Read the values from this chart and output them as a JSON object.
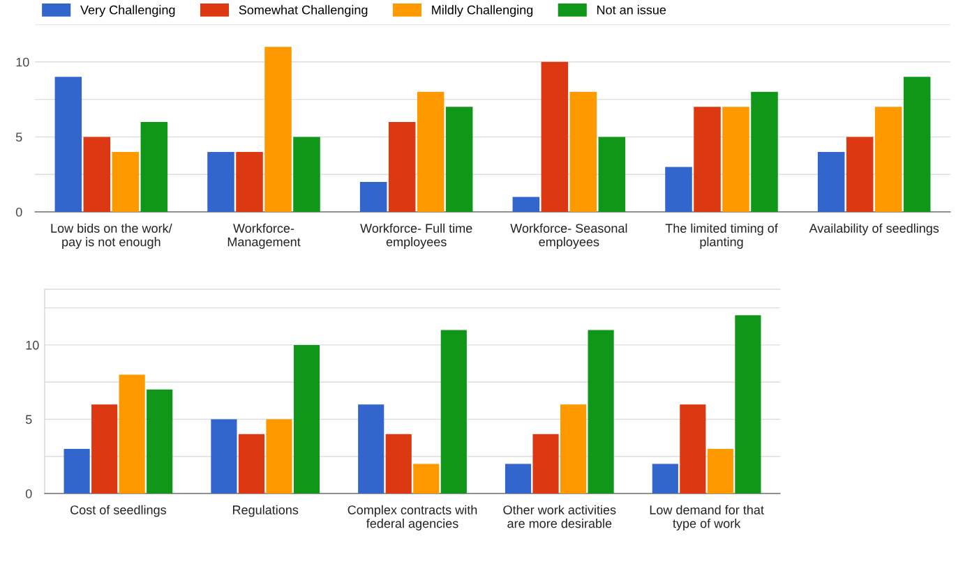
{
  "chart_data": [
    {
      "type": "bar",
      "categories": [
        "Low bids on the work/\npay is not enough",
        "Workforce-\nManagement",
        "Workforce- Full time\nemployees",
        "Workforce- Seasonal\nemployees",
        "The limited timing of\nplanting",
        "Availability of seedlings"
      ],
      "series": [
        {
          "name": "Very Challenging",
          "color": "#3366cc",
          "values": [
            9,
            4,
            2,
            1,
            3,
            4
          ]
        },
        {
          "name": "Somewhat Challenging",
          "color": "#dc3912",
          "values": [
            5,
            4,
            6,
            10,
            7,
            5
          ]
        },
        {
          "name": "Mildly Challenging",
          "color": "#ff9900",
          "values": [
            4,
            11,
            8,
            8,
            7,
            7
          ]
        },
        {
          "name": "Not an issue",
          "color": "#109618",
          "values": [
            6,
            5,
            7,
            5,
            8,
            9
          ]
        }
      ],
      "ylim": [
        0,
        12.5
      ],
      "yticks": [
        0,
        {
          "value": 2.5,
          "label": null
        },
        5,
        {
          "value": 7.5,
          "label": null
        },
        10,
        {
          "value": 12.5,
          "label": null
        }
      ],
      "grid": "y",
      "legend": "top left"
    },
    {
      "type": "bar",
      "categories": [
        "Cost of seedlings",
        "Regulations",
        "Complex contracts with\nfederal agencies",
        "Other work activities\nare more desirable",
        "Low demand for that\ntype of work"
      ],
      "series": [
        {
          "color": "#3366cc",
          "values": [
            3,
            5,
            6,
            2,
            2
          ]
        },
        {
          "color": "#dc3912",
          "values": [
            6,
            4,
            4,
            4,
            6
          ]
        },
        {
          "color": "#ff9900",
          "values": [
            8,
            5,
            2,
            6,
            3
          ]
        },
        {
          "color": "#109618",
          "values": [
            7,
            10,
            11,
            11,
            12
          ]
        }
      ],
      "ylim": [
        0,
        13.75
      ],
      "yticks": [
        0,
        {
          "value": 2.5,
          "label": null
        },
        5,
        {
          "value": 7.5,
          "label": null
        },
        10,
        {
          "value": 12.5,
          "label": null
        }
      ],
      "grid": "y"
    }
  ]
}
